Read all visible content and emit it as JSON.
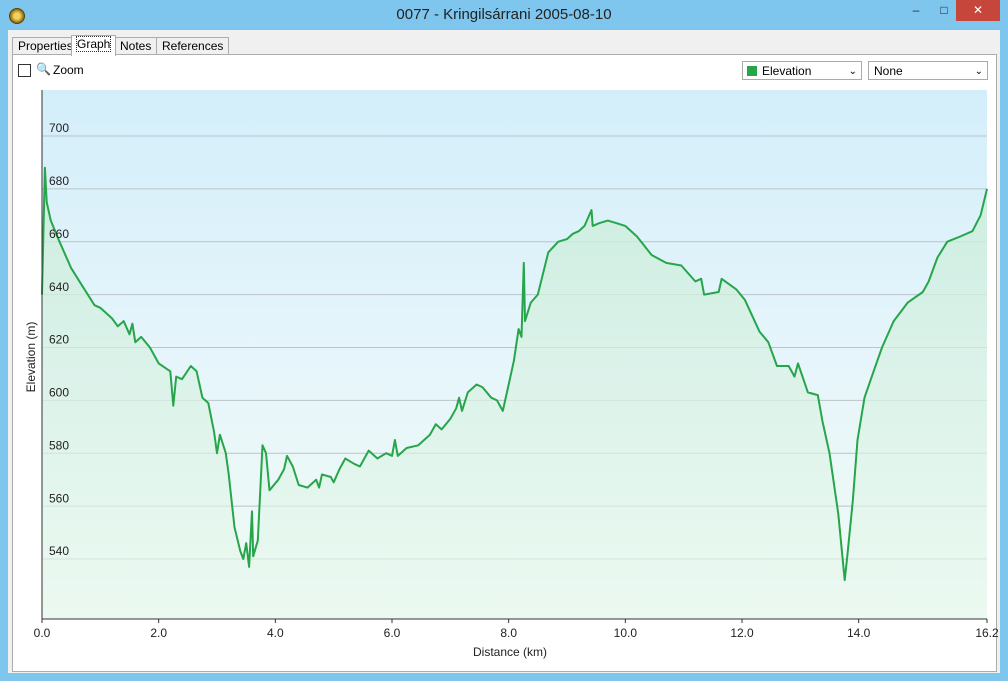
{
  "window": {
    "title": "0077 - Kringilsárrani 2005-08-10"
  },
  "tabs": [
    "Properties",
    "Graph",
    "Notes",
    "References"
  ],
  "toolbar": {
    "zoom": "Zoom",
    "primary": "Elevation",
    "secondary": "None"
  },
  "chart_data": {
    "type": "line",
    "xlabel": "Distance  (km)",
    "ylabel": "Elevation (m)",
    "x": [
      0,
      0.05,
      0.08,
      0.15,
      0.3,
      0.5,
      0.7,
      0.9,
      1.0,
      1.2,
      1.3,
      1.4,
      1.5,
      1.55,
      1.6,
      1.7,
      1.85,
      2.0,
      2.2,
      2.25,
      2.3,
      2.4,
      2.55,
      2.65,
      2.75,
      2.85,
      2.95,
      3.0,
      3.05,
      3.15,
      3.2,
      3.3,
      3.4,
      3.45,
      3.5,
      3.55,
      3.6,
      3.62,
      3.7,
      3.78,
      3.84,
      3.9,
      4.05,
      4.15,
      4.2,
      4.3,
      4.4,
      4.55,
      4.7,
      4.75,
      4.8,
      4.95,
      5.0,
      5.1,
      5.2,
      5.35,
      5.45,
      5.6,
      5.75,
      5.9,
      6.0,
      6.05,
      6.1,
      6.25,
      6.45,
      6.65,
      6.75,
      6.85,
      7.0,
      7.1,
      7.15,
      7.2,
      7.3,
      7.45,
      7.55,
      7.7,
      7.8,
      7.9,
      8.0,
      8.09,
      8.17,
      8.22,
      8.26,
      8.28,
      8.38,
      8.5,
      8.68,
      8.85,
      9.0,
      9.1,
      9.2,
      9.3,
      9.42,
      9.44,
      9.55,
      9.7,
      9.85,
      10.0,
      10.2,
      10.45,
      10.7,
      10.96,
      11.2,
      11.3,
      11.35,
      11.6,
      11.65,
      11.9,
      12.05,
      12.3,
      12.45,
      12.6,
      12.8,
      12.9,
      12.96,
      13.13,
      13.3,
      13.38,
      13.5,
      13.65,
      13.76,
      13.8,
      13.9,
      13.98,
      14.1,
      14.24,
      14.4,
      14.6,
      14.84,
      15.1,
      15.2,
      15.35,
      15.52,
      15.74,
      15.95,
      16.09,
      16.2
    ],
    "series": [
      {
        "name": "Elevation",
        "color": "#27a54a",
        "values": [
          640,
          688,
          675,
          668,
          660,
          650,
          643,
          636,
          635,
          631,
          628,
          630,
          625,
          629,
          622,
          624,
          620,
          614,
          611,
          598,
          609,
          608,
          613,
          611,
          601,
          599,
          588,
          580,
          587,
          580,
          572,
          552,
          543,
          540,
          546,
          537,
          558,
          541,
          547,
          583,
          580,
          566,
          570,
          574,
          579,
          575,
          568,
          567,
          570,
          567,
          572,
          571,
          569,
          574,
          578,
          576,
          575,
          581,
          578,
          580,
          579,
          585,
          579,
          582,
          583,
          587,
          591,
          589,
          593,
          597,
          601,
          596,
          603,
          606,
          605,
          601,
          600,
          596,
          606,
          615,
          627,
          624,
          652,
          630,
          637,
          640,
          656,
          660,
          661,
          663,
          664,
          666,
          672,
          666,
          667,
          668,
          667,
          666,
          662,
          655,
          652,
          651,
          645,
          646,
          640,
          641,
          646,
          642,
          638,
          626,
          622,
          613,
          613,
          609,
          614,
          603,
          602,
          592,
          580,
          557,
          532,
          540,
          562,
          585,
          601,
          610,
          620,
          630,
          637,
          641,
          645,
          654,
          660,
          662,
          664,
          670,
          680
        ]
      }
    ],
    "xlim": [
      0,
      16.2
    ],
    "ylim": [
      517.3,
      717.4
    ],
    "xticks": [
      {
        "value": 0,
        "label": "0.0"
      },
      {
        "value": 2,
        "label": "2.0"
      },
      {
        "value": 4,
        "label": "4.0"
      },
      {
        "value": 6,
        "label": "6.0"
      },
      {
        "value": 8,
        "label": "8.0"
      },
      {
        "value": 10,
        "label": "10.0"
      },
      {
        "value": 12,
        "label": "12.0"
      },
      {
        "value": 14,
        "label": "14.0"
      },
      16.2
    ],
    "yticks": [
      540,
      560,
      580,
      600,
      620,
      640,
      660,
      680,
      700
    ],
    "grid": true
  }
}
